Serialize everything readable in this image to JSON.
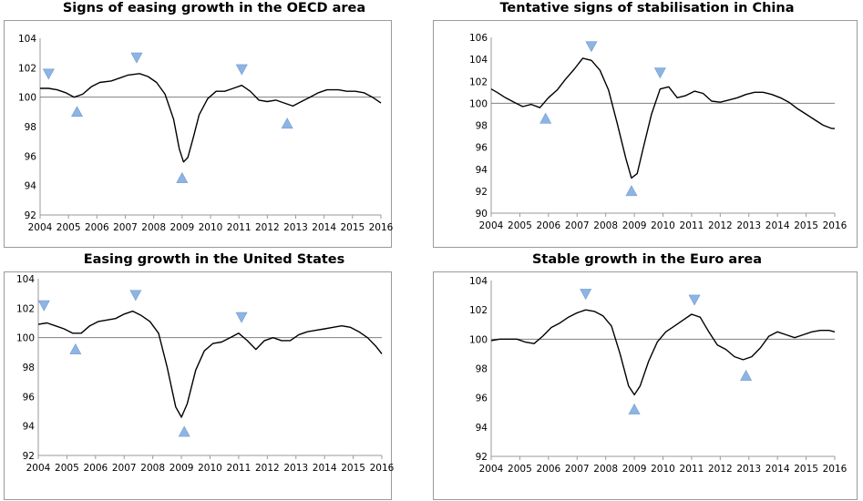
{
  "chart_data": [
    {
      "type": "line",
      "title": "Signs of easing growth in the OECD area",
      "xlim": [
        2004,
        2016
      ],
      "ylim": [
        92,
        104
      ],
      "x_ticks": [
        2004,
        2005,
        2006,
        2007,
        2008,
        2009,
        2010,
        2011,
        2012,
        2013,
        2014,
        2015,
        2016
      ],
      "y_ticks": [
        92,
        94,
        96,
        98,
        100,
        102,
        104
      ],
      "reference_line": 100,
      "grid": false,
      "line_color": "#000000",
      "marker_color": "#8eb4e3",
      "series": [
        {
          "x": [
            2004.0,
            2004.3,
            2004.6,
            2004.9,
            2005.2,
            2005.5,
            2005.8,
            2006.1,
            2006.5,
            2006.8,
            2007.1,
            2007.5,
            2007.8,
            2008.1,
            2008.4,
            2008.7,
            2008.9,
            2009.05,
            2009.2,
            2009.4,
            2009.6,
            2009.9,
            2010.2,
            2010.5,
            2010.8,
            2011.1,
            2011.4,
            2011.7,
            2012.0,
            2012.3,
            2012.6,
            2012.9,
            2013.2,
            2013.5,
            2013.8,
            2014.1,
            2014.5,
            2014.8,
            2015.1,
            2015.4,
            2015.7,
            2016.0
          ],
          "y": [
            100.6,
            100.6,
            100.5,
            100.3,
            100.0,
            100.2,
            100.7,
            101.0,
            101.1,
            101.3,
            101.5,
            101.6,
            101.4,
            101.0,
            100.2,
            98.5,
            96.5,
            95.6,
            95.9,
            97.3,
            98.8,
            99.9,
            100.4,
            100.4,
            100.6,
            100.8,
            100.4,
            99.8,
            99.7,
            99.8,
            99.6,
            99.4,
            99.7,
            100.0,
            100.3,
            100.5,
            100.5,
            100.4,
            100.4,
            100.3,
            100.0,
            99.6
          ]
        }
      ],
      "peaks": [
        [
          2004.3,
          101.6
        ],
        [
          2007.4,
          102.7
        ],
        [
          2011.1,
          101.9
        ]
      ],
      "troughs": [
        [
          2005.3,
          99.0
        ],
        [
          2009.0,
          94.5
        ],
        [
          2012.7,
          98.2
        ]
      ]
    },
    {
      "type": "line",
      "title": "Tentative signs of stabilisation in China",
      "xlim": [
        2004,
        2016
      ],
      "ylim": [
        90,
        106
      ],
      "x_ticks": [
        2004,
        2005,
        2006,
        2007,
        2008,
        2009,
        2010,
        2011,
        2012,
        2013,
        2014,
        2015,
        2016
      ],
      "y_ticks": [
        90,
        92,
        94,
        96,
        98,
        100,
        102,
        104,
        106
      ],
      "reference_line": 100,
      "grid": false,
      "line_color": "#000000",
      "marker_color": "#8eb4e3",
      "series": [
        {
          "x": [
            2004.0,
            2004.2,
            2004.5,
            2004.8,
            2005.1,
            2005.4,
            2005.7,
            2006.0,
            2006.3,
            2006.6,
            2006.9,
            2007.2,
            2007.5,
            2007.8,
            2008.1,
            2008.4,
            2008.7,
            2008.9,
            2009.1,
            2009.3,
            2009.6,
            2009.9,
            2010.2,
            2010.5,
            2010.8,
            2011.1,
            2011.4,
            2011.7,
            2012.0,
            2012.3,
            2012.6,
            2012.9,
            2013.2,
            2013.5,
            2013.8,
            2014.1,
            2014.4,
            2014.7,
            2015.0,
            2015.3,
            2015.6,
            2015.9,
            2016.0
          ],
          "y": [
            101.3,
            101.0,
            100.5,
            100.1,
            99.7,
            99.9,
            99.6,
            100.5,
            101.2,
            102.2,
            103.1,
            104.1,
            103.9,
            103.0,
            101.2,
            98.2,
            95.0,
            93.2,
            93.6,
            95.8,
            99.0,
            101.3,
            101.5,
            100.5,
            100.7,
            101.1,
            100.9,
            100.2,
            100.1,
            100.3,
            100.5,
            100.8,
            101.0,
            101.0,
            100.8,
            100.5,
            100.1,
            99.5,
            99.0,
            98.5,
            98.0,
            97.7,
            97.7
          ]
        }
      ],
      "peaks": [
        [
          2007.5,
          105.2
        ],
        [
          2009.9,
          102.8
        ]
      ],
      "troughs": [
        [
          2005.9,
          98.6
        ],
        [
          2008.9,
          92.0
        ]
      ]
    },
    {
      "type": "line",
      "title": "Easing growth in the United States",
      "xlim": [
        2004,
        2016
      ],
      "ylim": [
        92,
        104
      ],
      "x_ticks": [
        2004,
        2005,
        2006,
        2007,
        2008,
        2009,
        2010,
        2011,
        2012,
        2013,
        2014,
        2015,
        2016
      ],
      "y_ticks": [
        92,
        94,
        96,
        98,
        100,
        102,
        104
      ],
      "reference_line": 100,
      "grid": false,
      "line_color": "#000000",
      "marker_color": "#8eb4e3",
      "series": [
        {
          "x": [
            2004.0,
            2004.3,
            2004.6,
            2004.9,
            2005.2,
            2005.5,
            2005.8,
            2006.1,
            2006.4,
            2006.7,
            2007.0,
            2007.3,
            2007.6,
            2007.9,
            2008.2,
            2008.5,
            2008.8,
            2009.0,
            2009.2,
            2009.5,
            2009.8,
            2010.1,
            2010.4,
            2010.7,
            2011.0,
            2011.3,
            2011.6,
            2011.9,
            2012.2,
            2012.5,
            2012.8,
            2013.1,
            2013.4,
            2013.7,
            2014.0,
            2014.3,
            2014.6,
            2014.9,
            2015.2,
            2015.5,
            2015.8,
            2016.0
          ],
          "y": [
            100.9,
            101.0,
            100.8,
            100.6,
            100.3,
            100.3,
            100.8,
            101.1,
            101.2,
            101.3,
            101.6,
            101.8,
            101.5,
            101.1,
            100.3,
            98.0,
            95.3,
            94.6,
            95.5,
            97.8,
            99.1,
            99.6,
            99.7,
            100.0,
            100.3,
            99.8,
            99.2,
            99.8,
            100.0,
            99.8,
            99.8,
            100.2,
            100.4,
            100.5,
            100.6,
            100.7,
            100.8,
            100.7,
            100.4,
            100.0,
            99.4,
            98.9
          ]
        }
      ],
      "peaks": [
        [
          2004.2,
          102.2
        ],
        [
          2007.4,
          102.9
        ],
        [
          2011.1,
          101.4
        ]
      ],
      "troughs": [
        [
          2005.3,
          99.2
        ],
        [
          2009.1,
          93.6
        ]
      ]
    },
    {
      "type": "line",
      "title": "Stable growth in the Euro area",
      "xlim": [
        2004,
        2016
      ],
      "ylim": [
        92,
        104
      ],
      "x_ticks": [
        2004,
        2005,
        2006,
        2007,
        2008,
        2009,
        2010,
        2011,
        2012,
        2013,
        2014,
        2015,
        2016
      ],
      "y_ticks": [
        92,
        94,
        96,
        98,
        100,
        102,
        104
      ],
      "reference_line": 100,
      "grid": false,
      "line_color": "#000000",
      "marker_color": "#8eb4e3",
      "series": [
        {
          "x": [
            2004.0,
            2004.3,
            2004.6,
            2004.9,
            2005.2,
            2005.5,
            2005.8,
            2006.1,
            2006.4,
            2006.7,
            2007.0,
            2007.3,
            2007.6,
            2007.9,
            2008.2,
            2008.5,
            2008.8,
            2009.0,
            2009.2,
            2009.5,
            2009.8,
            2010.1,
            2010.4,
            2010.7,
            2011.0,
            2011.3,
            2011.6,
            2011.9,
            2012.2,
            2012.5,
            2012.8,
            2013.1,
            2013.4,
            2013.7,
            2014.0,
            2014.3,
            2014.6,
            2014.9,
            2015.2,
            2015.5,
            2015.8,
            2016.0
          ],
          "y": [
            99.9,
            100.0,
            100.0,
            100.0,
            99.8,
            99.7,
            100.2,
            100.8,
            101.1,
            101.5,
            101.8,
            102.0,
            101.9,
            101.6,
            100.9,
            99.0,
            96.8,
            96.2,
            96.8,
            98.5,
            99.8,
            100.5,
            100.9,
            101.3,
            101.7,
            101.5,
            100.5,
            99.6,
            99.3,
            98.8,
            98.6,
            98.8,
            99.4,
            100.2,
            100.5,
            100.3,
            100.1,
            100.3,
            100.5,
            100.6,
            100.6,
            100.5
          ]
        }
      ],
      "peaks": [
        [
          2007.3,
          103.1
        ],
        [
          2011.1,
          102.7
        ]
      ],
      "troughs": [
        [
          2009.0,
          95.2
        ],
        [
          2012.9,
          97.5
        ]
      ]
    }
  ]
}
